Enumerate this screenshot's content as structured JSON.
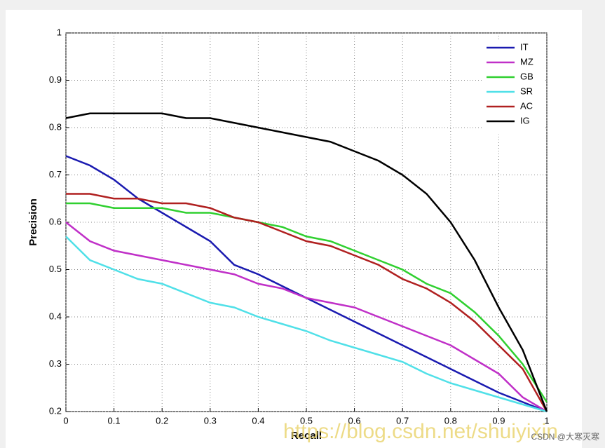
{
  "chart_data": {
    "type": "line",
    "xlabel": "Recall",
    "ylabel": "Precision",
    "x": [
      0,
      0.05,
      0.1,
      0.15,
      0.2,
      0.25,
      0.3,
      0.35,
      0.4,
      0.45,
      0.5,
      0.55,
      0.6,
      0.65,
      0.7,
      0.75,
      0.8,
      0.85,
      0.9,
      0.95,
      1
    ],
    "series": [
      {
        "name": "IT",
        "color": "#1a1ab0",
        "values": [
          0.74,
          0.72,
          0.69,
          0.65,
          0.62,
          0.59,
          0.56,
          0.51,
          0.49,
          0.465,
          0.44,
          0.415,
          0.39,
          0.365,
          0.34,
          0.315,
          0.29,
          0.265,
          0.24,
          0.22,
          0.2
        ]
      },
      {
        "name": "MZ",
        "color": "#c030c8",
        "values": [
          0.6,
          0.56,
          0.54,
          0.53,
          0.52,
          0.51,
          0.5,
          0.49,
          0.47,
          0.46,
          0.44,
          0.43,
          0.42,
          0.4,
          0.38,
          0.36,
          0.34,
          0.31,
          0.28,
          0.23,
          0.2
        ]
      },
      {
        "name": "GB",
        "color": "#30d030",
        "values": [
          0.64,
          0.64,
          0.63,
          0.63,
          0.63,
          0.62,
          0.62,
          0.61,
          0.6,
          0.59,
          0.57,
          0.56,
          0.54,
          0.52,
          0.5,
          0.47,
          0.45,
          0.41,
          0.36,
          0.3,
          0.22
        ]
      },
      {
        "name": "SR",
        "color": "#50e0e8",
        "values": [
          0.57,
          0.52,
          0.5,
          0.48,
          0.47,
          0.45,
          0.43,
          0.42,
          0.4,
          0.385,
          0.37,
          0.35,
          0.335,
          0.32,
          0.305,
          0.28,
          0.26,
          0.245,
          0.23,
          0.215,
          0.2
        ]
      },
      {
        "name": "AC",
        "color": "#b02020",
        "values": [
          0.66,
          0.66,
          0.65,
          0.65,
          0.64,
          0.64,
          0.63,
          0.61,
          0.6,
          0.58,
          0.56,
          0.55,
          0.53,
          0.51,
          0.48,
          0.46,
          0.43,
          0.39,
          0.34,
          0.29,
          0.2
        ]
      },
      {
        "name": "IG",
        "color": "#000000",
        "values": [
          0.82,
          0.83,
          0.83,
          0.83,
          0.83,
          0.82,
          0.82,
          0.81,
          0.8,
          0.79,
          0.78,
          0.77,
          0.75,
          0.73,
          0.7,
          0.66,
          0.6,
          0.52,
          0.42,
          0.33,
          0.2
        ]
      }
    ],
    "xlim": [
      0,
      1
    ],
    "ylim": [
      0.2,
      1
    ],
    "xticks": [
      0,
      0.1,
      0.2,
      0.3,
      0.4,
      0.5,
      0.6,
      0.7,
      0.8,
      0.9,
      1
    ],
    "yticks": [
      0.2,
      0.3,
      0.4,
      0.5,
      0.6,
      0.7,
      0.8,
      0.9,
      1
    ],
    "grid": true,
    "legend": "upper right",
    "watermark": "https://blog.csdn.net/shuiyixin",
    "credit": "CSDN @大寒灭寒"
  }
}
